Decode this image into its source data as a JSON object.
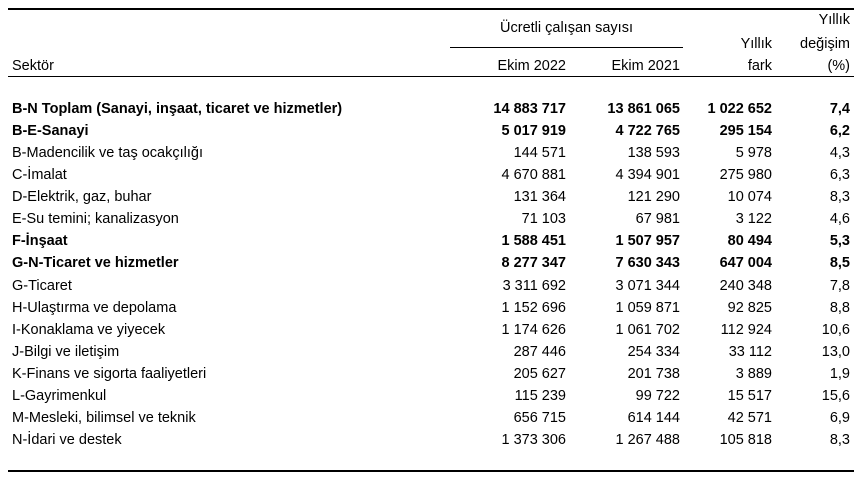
{
  "header": {
    "group": "Ücretli çalışan sayısı",
    "sector": "Sektör",
    "col1": "Ekim 2022",
    "col2": "Ekim 2021",
    "col3": [
      "Yıllık",
      "fark"
    ],
    "col4": [
      "Yıllık",
      "değişim",
      "(%)"
    ]
  },
  "table": {
    "rows": [
      {
        "label": "B-N Toplam (Sanayi, inşaat, ticaret ve hizmetler)",
        "bold": true,
        "cells": [
          "14 883 717",
          "13 861 065",
          "1 022 652",
          "7,4"
        ]
      },
      {
        "label": "B-E-Sanayi",
        "bold": true,
        "cells": [
          "5 017 919",
          "4 722 765",
          "295 154",
          "6,2"
        ]
      },
      {
        "label": "B-Madencilik ve taş ocakçılığı",
        "bold": false,
        "cells": [
          "144 571",
          "138 593",
          "5 978",
          "4,3"
        ]
      },
      {
        "label": "C-İmalat",
        "bold": false,
        "cells": [
          "4 670 881",
          "4 394 901",
          "275 980",
          "6,3"
        ]
      },
      {
        "label": "D-Elektrik, gaz, buhar",
        "bold": false,
        "cells": [
          "131 364",
          "121 290",
          "10 074",
          "8,3"
        ]
      },
      {
        "label": "E-Su temini; kanalizasyon",
        "bold": false,
        "cells": [
          "71 103",
          "67 981",
          "3 122",
          "4,6"
        ]
      },
      {
        "label": "F-İnşaat",
        "bold": true,
        "cells": [
          "1 588 451",
          "1 507 957",
          "80 494",
          "5,3"
        ]
      },
      {
        "label": "G-N-Ticaret ve hizmetler",
        "bold": true,
        "cells": [
          "8 277 347",
          "7 630 343",
          "647 004",
          "8,5"
        ]
      },
      {
        "label": "G-Ticaret",
        "bold": false,
        "cells": [
          "3 311 692",
          "3 071 344",
          "240 348",
          "7,8"
        ]
      },
      {
        "label": "H-Ulaştırma ve depolama",
        "bold": false,
        "cells": [
          "1 152 696",
          "1 059 871",
          "92 825",
          "8,8"
        ]
      },
      {
        "label": "I-Konaklama ve yiyecek",
        "bold": false,
        "cells": [
          "1 174 626",
          "1 061 702",
          "112 924",
          "10,6"
        ]
      },
      {
        "label": "J-Bilgi ve iletişim",
        "bold": false,
        "cells": [
          "287 446",
          "254 334",
          "33 112",
          "13,0"
        ]
      },
      {
        "label": "K-Finans ve sigorta faaliyetleri",
        "bold": false,
        "cells": [
          "205 627",
          "201 738",
          "3 889",
          "1,9"
        ]
      },
      {
        "label": "L-Gayrimenkul",
        "bold": false,
        "cells": [
          "115 239",
          "99 722",
          "15 517",
          "15,6"
        ]
      },
      {
        "label": "M-Mesleki, bilimsel ve teknik",
        "bold": false,
        "cells": [
          "656 715",
          "614 144",
          "42 571",
          "6,9"
        ]
      },
      {
        "label": "N-İdari ve destek",
        "bold": false,
        "cells": [
          "1 373 306",
          "1 267 488",
          "105 818",
          "8,3"
        ]
      }
    ]
  }
}
